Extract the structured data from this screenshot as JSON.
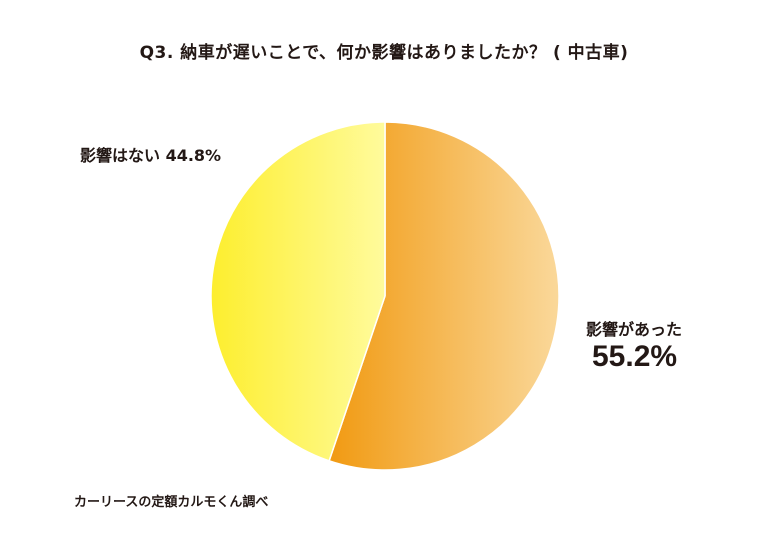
{
  "title": "Q3. 納車が遅いことで、何か影響はありましたか？ ( 中古車)",
  "source": "カーリースの定額カルモくん調べ",
  "labels": {
    "none": "影響はない 44.8%",
    "yes_name": "影響があった",
    "yes_value": "55.2%"
  },
  "colors": {
    "affected_start": "#f19a12",
    "affected_end": "#fad89a",
    "not_affected_start": "#fdee2e",
    "not_affected_end": "#fffb9c"
  },
  "chart_data": {
    "type": "pie",
    "title": "Q3. 納車が遅いことで、何か影響はありましたか？ ( 中古車)",
    "start": "12 o'clock",
    "direction": "clockwise",
    "slices": [
      {
        "name": "影響があった",
        "value": 55.2
      },
      {
        "name": "影響はない",
        "value": 44.8
      }
    ]
  }
}
